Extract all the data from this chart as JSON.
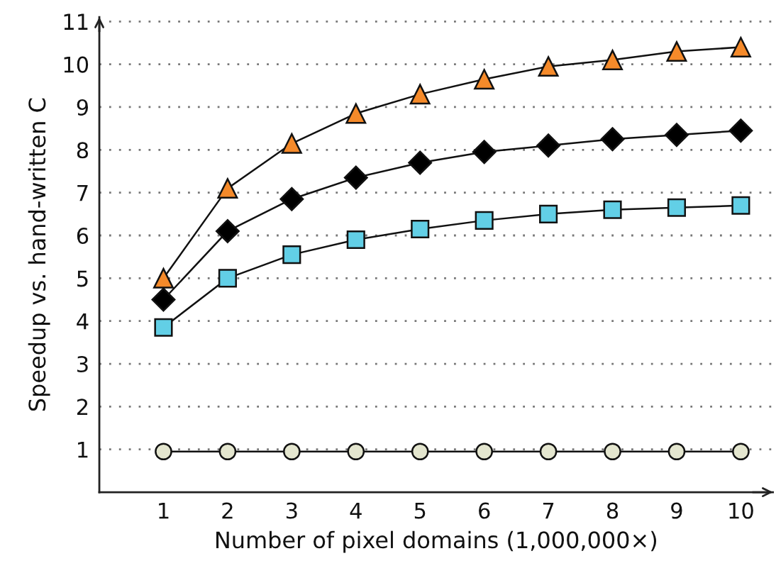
{
  "chart_data": {
    "type": "line",
    "xlabel": "Number of pixel domains (1,000,000×)",
    "ylabel": "Speedup vs. hand-written C",
    "x": [
      1,
      2,
      3,
      4,
      5,
      6,
      7,
      8,
      9,
      10
    ],
    "series": [
      {
        "color": "#f58a2a",
        "marker": "triangle",
        "values": [
          5.0,
          7.1,
          8.15,
          8.85,
          9.3,
          9.65,
          9.95,
          10.1,
          10.3,
          10.4
        ]
      },
      {
        "color": "#000000",
        "marker": "diamond",
        "values": [
          4.5,
          6.1,
          6.85,
          7.35,
          7.7,
          7.95,
          8.1,
          8.25,
          8.35,
          8.45
        ]
      },
      {
        "color": "#62cfe6",
        "marker": "square",
        "values": [
          3.85,
          5.0,
          5.55,
          5.9,
          6.15,
          6.35,
          6.5,
          6.6,
          6.65,
          6.7
        ]
      },
      {
        "color": "#e4e6cf",
        "marker": "circle",
        "values": [
          0.95,
          0.95,
          0.95,
          0.95,
          0.95,
          0.95,
          0.95,
          0.95,
          0.95,
          0.95
        ]
      }
    ],
    "xlim": [
      0,
      10.5
    ],
    "xticks": [
      1,
      2,
      3,
      4,
      5,
      6,
      7,
      8,
      9,
      10
    ],
    "ylim": [
      0,
      11.1
    ],
    "yticks": [
      1,
      2,
      3,
      4,
      5,
      6,
      7,
      8,
      9,
      10,
      11
    ],
    "grid": "y",
    "line_style": "solid"
  }
}
